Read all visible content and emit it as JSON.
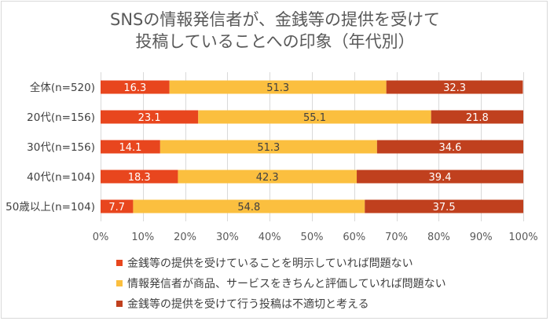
{
  "title_line1": "SNSの情報発信者が、金銭等の提供を受けて",
  "title_line2": "投稿していることへの印象（年代別）",
  "chart_data": {
    "type": "bar",
    "orientation": "horizontal",
    "stacked": "percent",
    "categories": [
      "全体(n=520)",
      "20代(n=156)",
      "30代(n=156)",
      "40代(n=104)",
      "50歳以上(n=104)"
    ],
    "series": [
      {
        "name": "金銭等の提供を受けていることを明示していれば問題ない",
        "color": "#e8461e",
        "values": [
          16.3,
          23.1,
          14.1,
          18.3,
          7.7
        ]
      },
      {
        "name": "情報発信者が商品、サービスをきちんと評価していれば問題ない",
        "color": "#fbbf3f",
        "values": [
          51.3,
          55.1,
          51.3,
          42.3,
          54.8
        ]
      },
      {
        "name": "金銭等の提供を受けて行う投稿は不適切と考える",
        "color": "#c0401e",
        "values": [
          32.3,
          21.8,
          34.6,
          39.4,
          37.5
        ]
      }
    ],
    "xlim": [
      0,
      100
    ],
    "xticks": [
      "0%",
      "10%",
      "20%",
      "30%",
      "40%",
      "50%",
      "60%",
      "70%",
      "80%",
      "90%",
      "100%"
    ],
    "grid": true,
    "legend_position": "bottom"
  }
}
